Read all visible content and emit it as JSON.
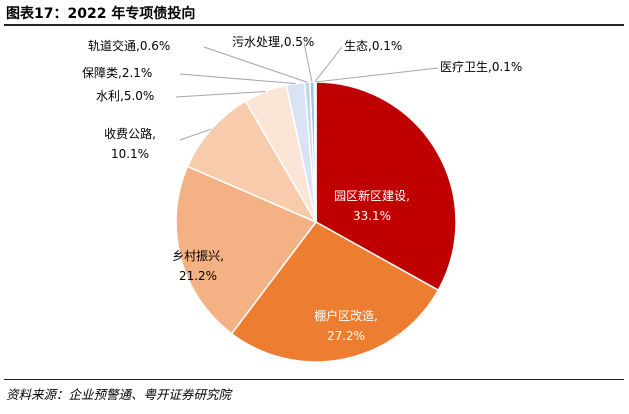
{
  "header": {
    "title": "图表17：2022 年专项债投向"
  },
  "footer": {
    "source": "资料来源：企业预警通、粤开证券研究院"
  },
  "chart_data": {
    "type": "pie",
    "title": "图表17：2022 年专项债投向",
    "start": "12 o'clock, clockwise",
    "slices": [
      {
        "label": "园区新区建设",
        "value": 33.1,
        "value_label": "33.1%",
        "color": "#c00000",
        "label_position": "inside",
        "text_color": "#ffffff"
      },
      {
        "label": "棚户区改造",
        "value": 27.2,
        "value_label": "27.2%",
        "color": "#ed7d31",
        "label_position": "inside",
        "text_color": "#ffffff"
      },
      {
        "label": "乡村振兴",
        "value": 21.2,
        "value_label": "21.2%",
        "color": "#f4b183",
        "label_position": "inside",
        "text_color": "#000000"
      },
      {
        "label": "收费公路",
        "value": 10.1,
        "value_label": "10.1%",
        "color": "#f8cbad",
        "label_position": "outside",
        "text_color": "#000000"
      },
      {
        "label": "水利",
        "value": 5.0,
        "value_label": "5.0%",
        "color": "#fbe5d6",
        "label_position": "outside",
        "text_color": "#000000"
      },
      {
        "label": "保障类",
        "value": 2.1,
        "value_label": "2.1%",
        "color": "#dae3f3",
        "label_position": "outside",
        "text_color": "#000000"
      },
      {
        "label": "轨道交通",
        "value": 0.6,
        "value_label": "0.6%",
        "color": "#bdd7ee",
        "label_position": "outside",
        "text_color": "#000000"
      },
      {
        "label": "污水处理",
        "value": 0.5,
        "value_label": "0.5%",
        "color": "#9dc3e6",
        "label_position": "outside",
        "text_color": "#000000"
      },
      {
        "label": "生态",
        "value": 0.1,
        "value_label": "0.1%",
        "color": "#2e75b6",
        "label_position": "outside",
        "text_color": "#000000"
      },
      {
        "label": "医疗卫生",
        "value": 0.1,
        "value_label": "0.1%",
        "color": "#1f4e79",
        "label_position": "outside",
        "text_color": "#000000"
      }
    ]
  }
}
